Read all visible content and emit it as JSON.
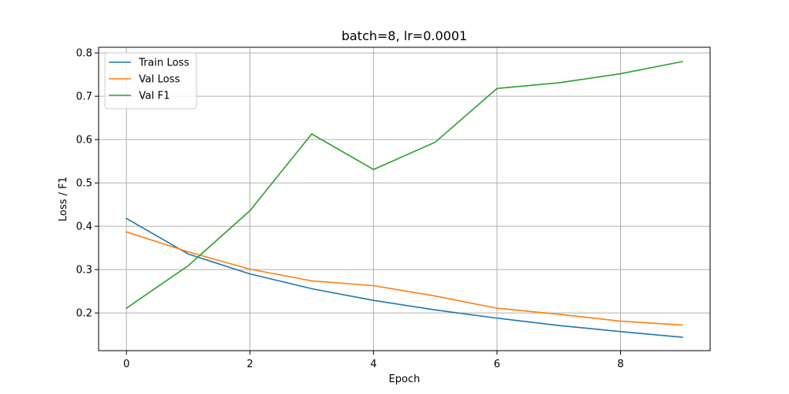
{
  "chart_data": {
    "type": "line",
    "title": "batch=8, lr=0.0001",
    "xlabel": "Epoch",
    "ylabel": "Loss / F1",
    "x": [
      0,
      1,
      2,
      3,
      4,
      5,
      6,
      7,
      8,
      9
    ],
    "xlim": [
      -0.45,
      9.45
    ],
    "ylim": [
      0.113,
      0.813
    ],
    "xticks": [
      0,
      2,
      4,
      6,
      8
    ],
    "xtick_labels": [
      "0",
      "2",
      "4",
      "6",
      "8"
    ],
    "yticks": [
      0.2,
      0.3,
      0.4,
      0.5,
      0.6,
      0.7,
      0.8
    ],
    "ytick_labels": [
      "0.2",
      "0.3",
      "0.4",
      "0.5",
      "0.6",
      "0.7",
      "0.8"
    ],
    "grid": true,
    "legend_position": "top-left",
    "series": [
      {
        "name": "Train Loss",
        "color": "#1f77b4",
        "values": [
          0.418,
          0.336,
          0.29,
          0.256,
          0.229,
          0.207,
          0.188,
          0.171,
          0.157,
          0.144
        ]
      },
      {
        "name": "Val Loss",
        "color": "#ff7f0e",
        "values": [
          0.387,
          0.341,
          0.301,
          0.274,
          0.263,
          0.239,
          0.211,
          0.197,
          0.181,
          0.172
        ]
      },
      {
        "name": "Val F1",
        "color": "#2ca02c",
        "values": [
          0.211,
          0.309,
          0.436,
          0.613,
          0.531,
          0.594,
          0.718,
          0.731,
          0.752,
          0.78
        ]
      }
    ]
  }
}
